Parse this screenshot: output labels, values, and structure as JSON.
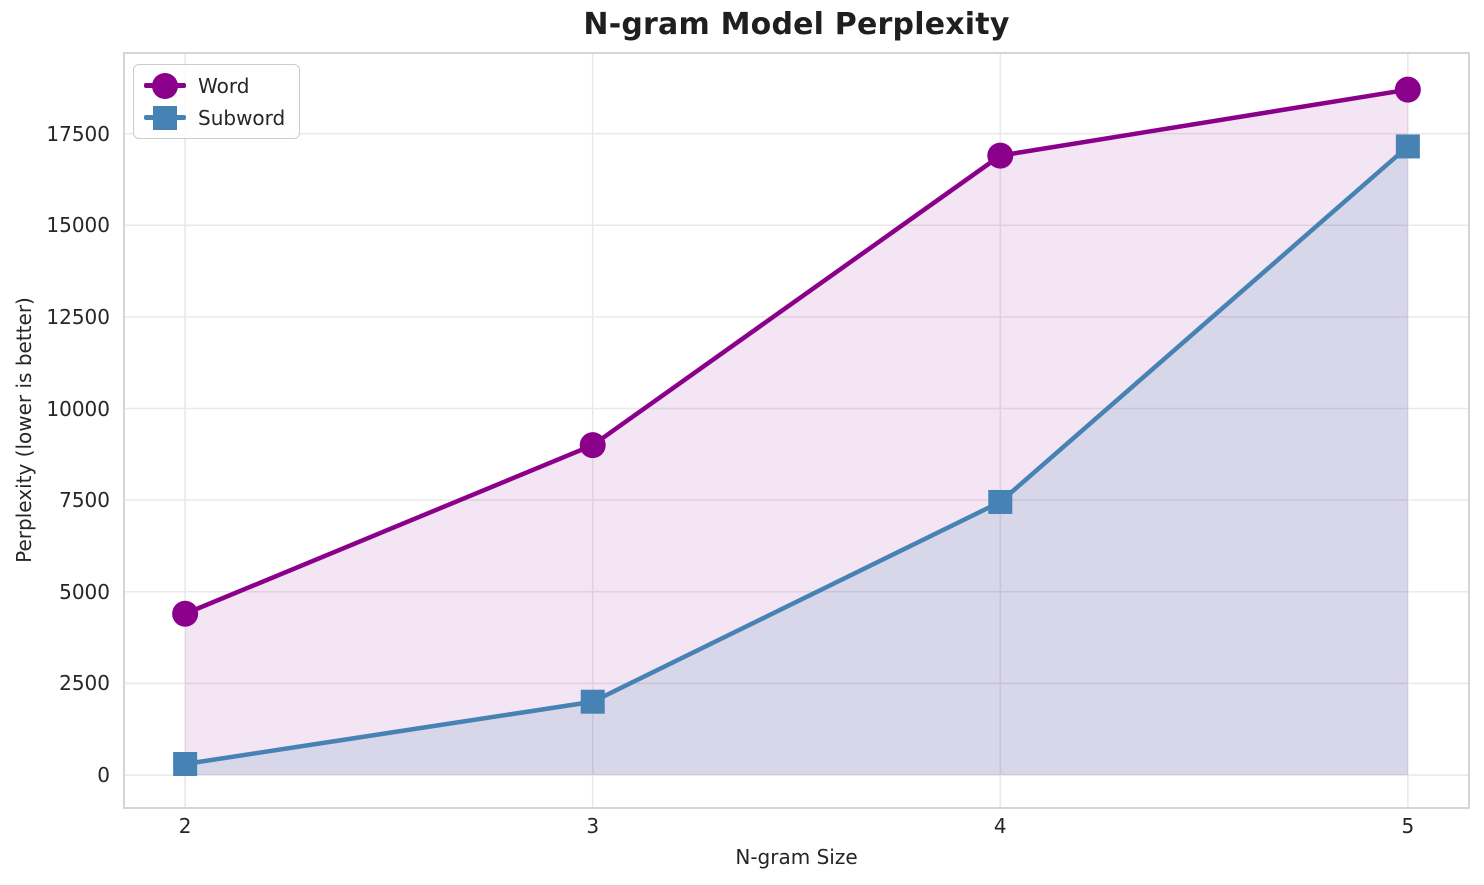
{
  "chart_data": {
    "type": "line",
    "title": "N-gram Model Perplexity",
    "xlabel": "N-gram Size",
    "ylabel": "Perplexity (lower is better)",
    "x": [
      2,
      3,
      4,
      5
    ],
    "series": [
      {
        "name": "Word",
        "marker": "circle",
        "color": "#8B008B",
        "fill": "rgba(139,0,139,0.10)",
        "values": [
          4400,
          9000,
          16900,
          18700
        ]
      },
      {
        "name": "Subword",
        "marker": "square",
        "color": "#4682B4",
        "fill": "rgba(70,130,180,0.15)",
        "values": [
          300,
          2000,
          7450,
          17150
        ]
      }
    ],
    "xticks": [
      2,
      3,
      4,
      5
    ],
    "yticks": [
      0,
      2500,
      5000,
      7500,
      10000,
      12500,
      15000,
      17500
    ],
    "xlim": [
      1.85,
      5.15
    ],
    "ylim": [
      -900,
      19700
    ],
    "fill_baseline": 0,
    "grid": true,
    "legend_position": "upper left",
    "colors": {
      "grid": "#E9E9E9",
      "spine": "#D5D5D5",
      "text": "#262626",
      "title": "#1F1F1F",
      "background": "#FFFFFF"
    }
  }
}
